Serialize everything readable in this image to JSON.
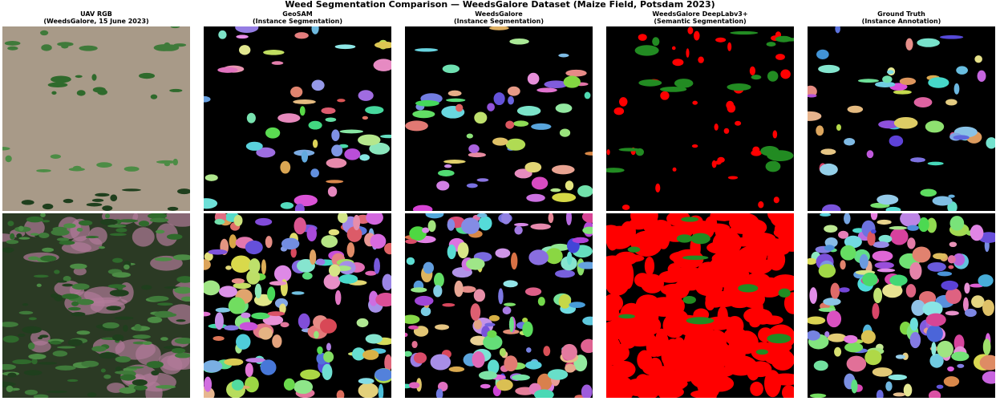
{
  "figure": {
    "title": "Weed Segmentation Comparison — WeedsGalore Dataset (Maize Field, Potsdam 2023)",
    "columns": [
      {
        "title": "UAV RGB",
        "subtitle": "(WeedsGalore, 15 June 2023)",
        "kind": "rgb"
      },
      {
        "title": "GeoSAM",
        "subtitle": "(Instance Segmentation)",
        "kind": "instance"
      },
      {
        "title": "WeedsGalore",
        "subtitle": "(Instance Segmentation)",
        "kind": "instance"
      },
      {
        "title": "WeedsGalore DeepLabv3+",
        "subtitle": "(Semantic Segmentation)",
        "kind": "semantic"
      },
      {
        "title": "Ground Truth",
        "subtitle": "(Instance Annotation)",
        "kind": "instance"
      }
    ],
    "semantic_colors": {
      "crop": "#228b22",
      "weed": "#ff0000",
      "background": "#000000"
    },
    "rows": 2
  }
}
